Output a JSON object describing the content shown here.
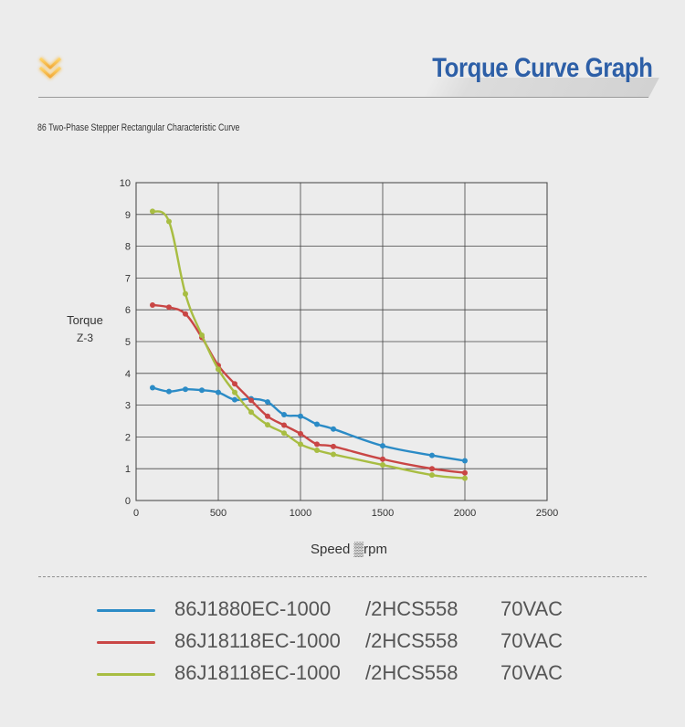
{
  "header": {
    "title": "Torque Curve Graph"
  },
  "subtitle": "86 Two-Phase Stepper Rectangular Characteristic Curve",
  "chart_data": {
    "type": "line",
    "title": "",
    "xlabel": "Speed ▒rpm",
    "ylabel": "Torque",
    "ylabel_sub": "Z-3",
    "xlim": [
      0,
      2500
    ],
    "ylim": [
      0,
      10
    ],
    "x_ticks": [
      0,
      500,
      1000,
      1500,
      2000,
      2500
    ],
    "y_ticks": [
      0,
      1,
      2,
      3,
      4,
      5,
      6,
      7,
      8,
      9,
      10
    ],
    "grid": true,
    "legend_position": "bottom",
    "series": [
      {
        "name": "86J1880EC-1000",
        "driver": "/2HCS558",
        "voltage": "70VAC",
        "color": "#2b8bc6",
        "x": [
          100,
          200,
          300,
          400,
          500,
          600,
          700,
          800,
          900,
          1000,
          1100,
          1200,
          1500,
          1800,
          2000
        ],
        "y": [
          3.55,
          3.43,
          3.5,
          3.47,
          3.4,
          3.17,
          3.2,
          3.1,
          2.7,
          2.65,
          2.4,
          2.25,
          1.72,
          1.42,
          1.25
        ]
      },
      {
        "name": "86J18118EC-1000",
        "driver": "/2HCS558",
        "voltage": "70VAC",
        "color": "#c94645",
        "x": [
          100,
          200,
          300,
          400,
          500,
          600,
          700,
          800,
          900,
          1000,
          1100,
          1200,
          1500,
          1800,
          2000
        ],
        "y": [
          6.15,
          6.08,
          5.87,
          5.13,
          4.25,
          3.67,
          3.15,
          2.65,
          2.37,
          2.1,
          1.77,
          1.7,
          1.3,
          1.0,
          0.87
        ]
      },
      {
        "name": "86J18118EC-1000",
        "driver": "/2HCS558",
        "voltage": "70VAC",
        "color": "#a8bd42",
        "x": [
          100,
          200,
          300,
          400,
          500,
          600,
          700,
          800,
          900,
          1000,
          1100,
          1200,
          1500,
          1800,
          2000
        ],
        "y": [
          9.1,
          8.78,
          6.5,
          5.2,
          4.13,
          3.4,
          2.78,
          2.38,
          2.12,
          1.77,
          1.58,
          1.45,
          1.12,
          0.8,
          0.7
        ]
      }
    ]
  }
}
